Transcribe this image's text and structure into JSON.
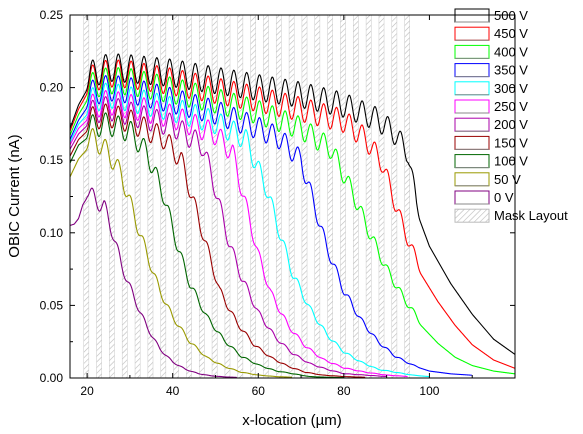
{
  "chart_data": {
    "type": "line",
    "title": "",
    "xlabel": "x-location (µm)",
    "ylabel": "OBIC Current (nA)",
    "xlim": [
      16,
      120
    ],
    "ylim": [
      0,
      0.25
    ],
    "x_ticks": [
      20,
      40,
      60,
      80,
      100
    ],
    "x_tick_labels": [
      "20",
      "40",
      "60",
      "80",
      "100"
    ],
    "y_ticks": [
      0,
      0.05,
      0.1,
      0.15,
      0.2,
      0.25
    ],
    "y_tick_labels": [
      "0.00",
      "0.05",
      "0.10",
      "0.15",
      "0.20",
      "0.25"
    ],
    "grid": false,
    "legend_position": "right",
    "mask_layout": {
      "name": "Mask Layout",
      "color": "#bbbbbb",
      "stripe_centers": [
        19.8,
        22.8,
        25.8,
        28.8,
        31.8,
        34.8,
        37.8,
        40.8,
        43.8,
        46.8,
        49.8,
        52.8,
        55.8,
        58.8,
        61.8,
        64.8,
        67.8,
        70.8,
        73.8,
        76.8,
        79.8,
        82.8,
        85.8,
        88.8,
        91.8,
        94.8
      ],
      "stripe_width": 1.2
    },
    "series": [
      {
        "name": "500 V",
        "color": "#000000",
        "x": [
          16,
          18,
          20,
          25,
          30,
          40,
          50,
          60,
          70,
          80,
          88,
          92,
          95,
          97,
          100,
          105,
          110,
          115,
          120
        ],
        "y": [
          0.18,
          0.197,
          0.208,
          0.214,
          0.213,
          0.21,
          0.205,
          0.2,
          0.195,
          0.188,
          0.178,
          0.168,
          0.155,
          0.12,
          0.095,
          0.068,
          0.046,
          0.028,
          0.017
        ]
      },
      {
        "name": "450 V",
        "color": "#ff0000",
        "x": [
          16,
          18,
          20,
          25,
          30,
          40,
          50,
          60,
          70,
          80,
          85,
          89,
          92,
          95,
          98,
          102,
          106,
          110,
          115,
          120
        ],
        "y": [
          0.178,
          0.194,
          0.205,
          0.21,
          0.209,
          0.204,
          0.198,
          0.192,
          0.185,
          0.177,
          0.165,
          0.148,
          0.12,
          0.095,
          0.075,
          0.055,
          0.038,
          0.024,
          0.013,
          0.007
        ]
      },
      {
        "name": "400 V",
        "color": "#00ff00",
        "x": [
          16,
          18,
          20,
          25,
          30,
          40,
          50,
          60,
          70,
          77,
          82,
          86,
          90,
          94,
          98,
          102,
          106,
          110,
          115,
          120
        ],
        "y": [
          0.175,
          0.19,
          0.2,
          0.205,
          0.204,
          0.198,
          0.191,
          0.183,
          0.172,
          0.158,
          0.128,
          0.1,
          0.075,
          0.055,
          0.038,
          0.025,
          0.015,
          0.009,
          0.005,
          0.003
        ]
      },
      {
        "name": "350 V",
        "color": "#0000ff",
        "x": [
          16,
          18,
          20,
          25,
          30,
          40,
          50,
          60,
          65,
          70,
          73,
          76,
          80,
          84,
          88,
          92,
          96,
          100,
          105,
          110
        ],
        "y": [
          0.172,
          0.186,
          0.195,
          0.2,
          0.198,
          0.191,
          0.183,
          0.172,
          0.165,
          0.15,
          0.12,
          0.09,
          0.06,
          0.04,
          0.025,
          0.015,
          0.009,
          0.005,
          0.003,
          0.002
        ]
      },
      {
        "name": "300 V",
        "color": "#00ffff",
        "x": [
          16,
          18,
          20,
          25,
          30,
          40,
          50,
          57,
          62,
          65,
          68,
          72,
          76,
          80,
          84,
          88,
          92,
          96,
          100
        ],
        "y": [
          0.17,
          0.183,
          0.19,
          0.195,
          0.192,
          0.185,
          0.176,
          0.165,
          0.13,
          0.1,
          0.072,
          0.048,
          0.03,
          0.018,
          0.011,
          0.006,
          0.004,
          0.002,
          0.001
        ]
      },
      {
        "name": "250 V",
        "color": "#ff00ff",
        "x": [
          16,
          18,
          20,
          25,
          30,
          40,
          50,
          54,
          57,
          60,
          63,
          67,
          71,
          75,
          80,
          85,
          90,
          95
        ],
        "y": [
          0.168,
          0.18,
          0.186,
          0.19,
          0.187,
          0.18,
          0.168,
          0.155,
          0.12,
          0.085,
          0.058,
          0.036,
          0.022,
          0.013,
          0.007,
          0.004,
          0.002,
          0.001
        ]
      },
      {
        "name": "200 V",
        "color": "#aa00aa",
        "x": [
          16,
          18,
          20,
          25,
          30,
          40,
          47,
          50,
          53,
          56,
          60,
          64,
          68,
          72,
          76,
          80,
          85,
          90
        ],
        "y": [
          0.165,
          0.176,
          0.182,
          0.186,
          0.182,
          0.174,
          0.16,
          0.13,
          0.095,
          0.07,
          0.045,
          0.028,
          0.017,
          0.01,
          0.006,
          0.003,
          0.002,
          0.001
        ]
      },
      {
        "name": "150 V",
        "color": "#990000",
        "x": [
          16,
          18,
          20,
          25,
          30,
          38,
          42,
          45,
          48,
          51,
          55,
          59,
          63,
          67,
          71,
          75,
          80,
          85
        ],
        "y": [
          0.16,
          0.172,
          0.178,
          0.181,
          0.177,
          0.165,
          0.15,
          0.12,
          0.09,
          0.06,
          0.038,
          0.023,
          0.014,
          0.008,
          0.004,
          0.002,
          0.001,
          0.0005
        ]
      },
      {
        "name": "100 V",
        "color": "#006600",
        "x": [
          16,
          18,
          20,
          25,
          30,
          34,
          38,
          41,
          44,
          48,
          52,
          56,
          60,
          64,
          68,
          72,
          76,
          80
        ],
        "y": [
          0.155,
          0.168,
          0.173,
          0.175,
          0.17,
          0.155,
          0.125,
          0.092,
          0.065,
          0.042,
          0.026,
          0.015,
          0.009,
          0.005,
          0.003,
          0.001,
          0.0005,
          0.0003
        ]
      },
      {
        "name": "50 V",
        "color": "#999900",
        "x": [
          16,
          18,
          20,
          22,
          25,
          28,
          31,
          34,
          37,
          40,
          44,
          48,
          52,
          56,
          60,
          64,
          68
        ],
        "y": [
          0.145,
          0.158,
          0.165,
          0.164,
          0.155,
          0.14,
          0.112,
          0.085,
          0.06,
          0.042,
          0.025,
          0.014,
          0.008,
          0.004,
          0.002,
          0.001,
          0.0005
        ]
      },
      {
        "name": "0 V",
        "color": "#800080",
        "x": [
          16,
          17,
          18,
          19,
          20,
          22,
          24,
          26,
          28,
          31,
          34,
          37,
          40,
          43,
          46,
          49,
          52,
          55
        ],
        "y": [
          0.11,
          0.111,
          0.115,
          0.125,
          0.13,
          0.122,
          0.118,
          0.1,
          0.078,
          0.055,
          0.035,
          0.02,
          0.011,
          0.006,
          0.003,
          0.0015,
          0.0008,
          0.0004
        ]
      }
    ]
  }
}
